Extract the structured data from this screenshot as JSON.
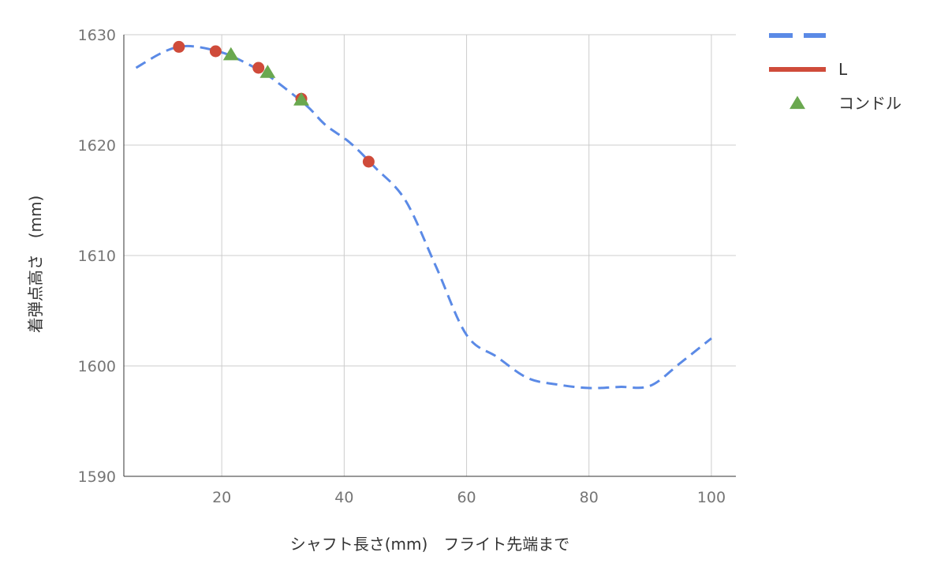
{
  "chart_data": {
    "type": "line",
    "xlabel": "シャフト長さ(mm)　フライト先端まで",
    "ylabel": "着弾点高さ　(mm)",
    "xlim": [
      4,
      104
    ],
    "ylim": [
      1590,
      1630
    ],
    "x_ticks": [
      20,
      40,
      60,
      80,
      100
    ],
    "y_ticks": [
      1590,
      1600,
      1610,
      1620,
      1630
    ],
    "grid": true,
    "legend_position": "right",
    "series": [
      {
        "name": "",
        "type": "line",
        "style": "dashed",
        "color": "#5b8ae6",
        "x": [
          6,
          10,
          13,
          16,
          20,
          23,
          27,
          30,
          34,
          37,
          41,
          45,
          50,
          55,
          60,
          65,
          70,
          75,
          80,
          85,
          90,
          95,
          100
        ],
        "y": [
          1627.0,
          1628.3,
          1628.9,
          1628.9,
          1628.4,
          1627.7,
          1626.5,
          1625.3,
          1623.5,
          1621.8,
          1620.2,
          1618.0,
          1615.0,
          1609.0,
          1602.8,
          1600.8,
          1598.9,
          1598.3,
          1598.0,
          1598.1,
          1598.2,
          1600.3,
          1602.5
        ]
      },
      {
        "name": "L",
        "type": "scatter",
        "marker": "circle",
        "color": "#cf4b3a",
        "x": [
          13,
          19,
          26,
          33,
          44
        ],
        "y": [
          1628.9,
          1628.5,
          1627.0,
          1624.2,
          1618.5
        ]
      },
      {
        "name": "コンドル",
        "type": "scatter",
        "marker": "triangle",
        "color": "#6aa84f",
        "x": [
          21.5,
          27.5,
          33
        ],
        "y": [
          1628.2,
          1626.6,
          1624.1
        ]
      }
    ]
  }
}
